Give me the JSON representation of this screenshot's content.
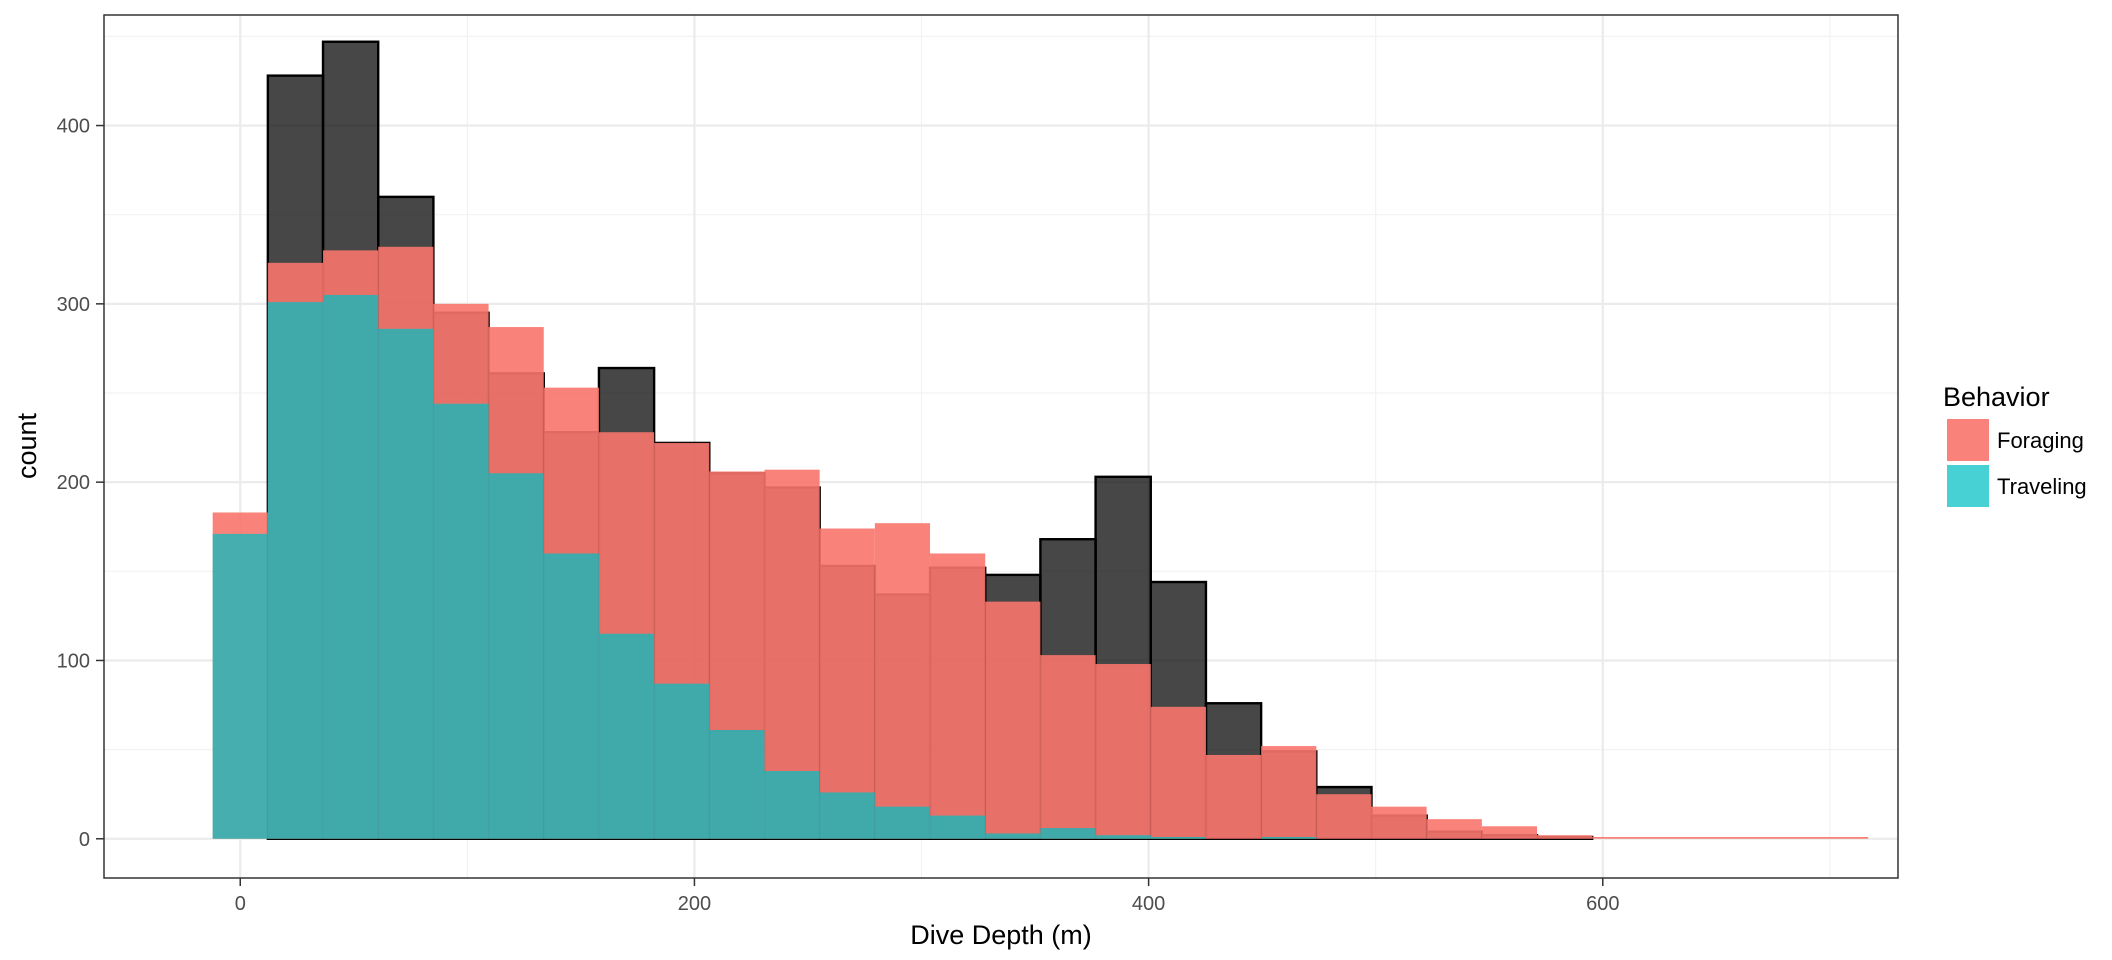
{
  "chart_data": {
    "type": "bar",
    "subtype": "overlaid-histogram",
    "title": "",
    "xlabel": "Dive Depth (m)",
    "ylabel": "count",
    "xlim": [
      -60,
      730
    ],
    "ylim": [
      -22,
      462
    ],
    "x_ticks": [
      0,
      200,
      400,
      600
    ],
    "y_ticks": [
      0,
      100,
      200,
      300,
      400
    ],
    "bin_width": 24.3,
    "bin_start": -12.15,
    "grid": true,
    "legend": {
      "title": "Behavior",
      "position": "right",
      "entries": [
        "Foraging",
        "Traveling"
      ]
    },
    "series": [
      {
        "name": "",
        "color": "#000000",
        "alpha": 0.72,
        "values": [
          0,
          428,
          447,
          360,
          295,
          261,
          228,
          264,
          222,
          205,
          197,
          153,
          137,
          152,
          148,
          168,
          203,
          144,
          76,
          49,
          29,
          13,
          4,
          2,
          1,
          0,
          0,
          0,
          0,
          0
        ]
      },
      {
        "name": "Foraging",
        "color": "#F8766D",
        "alpha": 0.9,
        "values": [
          183,
          323,
          330,
          332,
          300,
          287,
          253,
          228,
          222,
          206,
          207,
          174,
          177,
          160,
          133,
          103,
          98,
          74,
          47,
          52,
          25,
          18,
          11,
          7,
          2,
          1,
          1,
          1,
          1,
          1
        ]
      },
      {
        "name": "Traveling",
        "color": "#00BFC4",
        "alpha": 0.72,
        "values": [
          171,
          301,
          305,
          286,
          244,
          205,
          160,
          115,
          87,
          61,
          38,
          26,
          18,
          13,
          3,
          6,
          2,
          1,
          0,
          1,
          0,
          0,
          0,
          0,
          0,
          0,
          0,
          0,
          0,
          0
        ]
      }
    ]
  }
}
